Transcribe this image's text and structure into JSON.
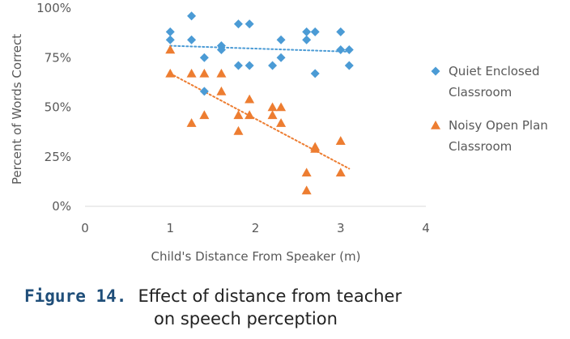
{
  "chart_data": {
    "type": "scatter",
    "xlabel": "Child's Distance From Speaker (m)",
    "ylabel": "Percent of Words Correct",
    "xlim": [
      0,
      4
    ],
    "ylim": [
      0,
      100
    ],
    "x_ticks": [
      "0",
      "1",
      "2",
      "3",
      "4"
    ],
    "y_ticks": [
      "0%",
      "25%",
      "50%",
      "75%",
      "100%"
    ],
    "grid": false,
    "legend_position": "right",
    "series": [
      {
        "name": "Quiet Enclosed Classroom",
        "legend_lines": [
          "Quiet Enclosed",
          "Classroom"
        ],
        "marker": "diamond",
        "color": "#4b9bd5",
        "points": [
          [
            1.0,
            88
          ],
          [
            1.0,
            84
          ],
          [
            1.25,
            96
          ],
          [
            1.25,
            84
          ],
          [
            1.4,
            75
          ],
          [
            1.4,
            58
          ],
          [
            1.6,
            81
          ],
          [
            1.6,
            79
          ],
          [
            1.8,
            92
          ],
          [
            1.8,
            71
          ],
          [
            1.93,
            92
          ],
          [
            1.93,
            71
          ],
          [
            2.2,
            71
          ],
          [
            2.3,
            84
          ],
          [
            2.3,
            75
          ],
          [
            2.6,
            88
          ],
          [
            2.6,
            84
          ],
          [
            2.7,
            88
          ],
          [
            2.7,
            67
          ],
          [
            3.0,
            88
          ],
          [
            3.0,
            79
          ],
          [
            3.1,
            79
          ],
          [
            3.1,
            71
          ]
        ],
        "trendline": {
          "style": "dotted",
          "x": [
            1.0,
            3.1
          ],
          "y": [
            81,
            78
          ]
        }
      },
      {
        "name": "Noisy Open Plan Classroom",
        "legend_lines": [
          "Noisy Open Plan",
          "Classroom"
        ],
        "marker": "triangle",
        "color": "#ed7d31",
        "points": [
          [
            1.0,
            79
          ],
          [
            1.0,
            67
          ],
          [
            1.25,
            67
          ],
          [
            1.25,
            42
          ],
          [
            1.4,
            67
          ],
          [
            1.4,
            46
          ],
          [
            1.6,
            67
          ],
          [
            1.6,
            58
          ],
          [
            1.8,
            46
          ],
          [
            1.8,
            38
          ],
          [
            1.93,
            54
          ],
          [
            1.93,
            46
          ],
          [
            2.2,
            50
          ],
          [
            2.2,
            46
          ],
          [
            2.3,
            50
          ],
          [
            2.3,
            42
          ],
          [
            2.6,
            17
          ],
          [
            2.6,
            8
          ],
          [
            2.7,
            30
          ],
          [
            2.7,
            29
          ],
          [
            3.0,
            33
          ],
          [
            3.0,
            17
          ]
        ],
        "trendline": {
          "style": "dotted",
          "x": [
            1.0,
            3.1
          ],
          "y": [
            67,
            19
          ]
        }
      }
    ]
  },
  "caption": {
    "label": "Figure 14.",
    "text_line1": "Effect of distance from teacher",
    "text_line2": "on speech perception"
  }
}
